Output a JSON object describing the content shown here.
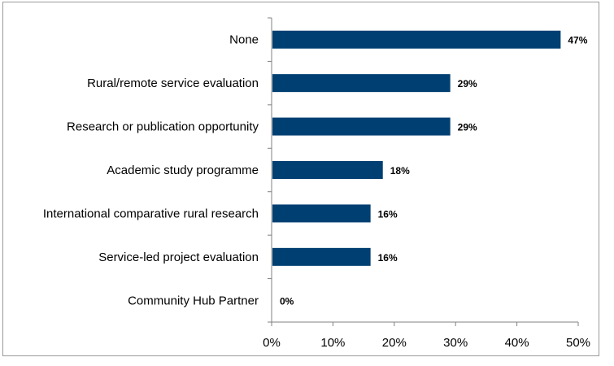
{
  "chart_data": {
    "type": "bar",
    "orientation": "horizontal",
    "categories": [
      "None",
      "Rural/remote service evaluation",
      "Research or publication opportunity",
      "Academic study programme",
      "International comparative rural research",
      "Service-led project evaluation",
      "Community Hub Partner"
    ],
    "values": [
      47,
      29,
      29,
      18,
      16,
      16,
      0
    ],
    "data_labels": [
      "47%",
      "29%",
      "29%",
      "18%",
      "16%",
      "16%",
      "0%"
    ],
    "x_ticks": [
      "0%",
      "10%",
      "20%",
      "30%",
      "40%",
      "50%"
    ],
    "xlim": [
      0,
      50
    ],
    "title": "",
    "xlabel": "",
    "ylabel": "",
    "grid": false,
    "legend": "none",
    "bar_color": "#003f72"
  }
}
